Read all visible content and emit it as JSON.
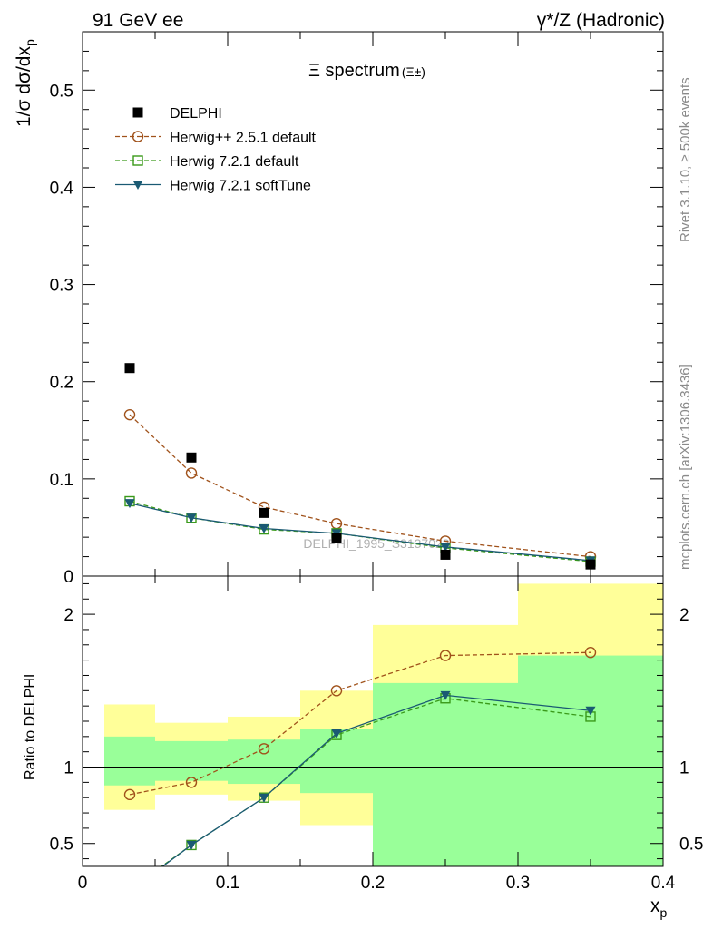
{
  "header": {
    "left": "91 GeV ee",
    "right": "γ*/Z (Hadronic)"
  },
  "side_labels": {
    "rivet": "Rivet 3.1.10, ≥ 500k events",
    "mcplots": "mcplots.cern.ch [arXiv:1306.3436]"
  },
  "watermark": "DELPHI_1995_S3137023",
  "colors": {
    "data": "#000000",
    "herwigpp": "#a0521b",
    "herwig721": "#3a9a1a",
    "softtune": "#1a5a73",
    "band_inner": "#99ff99",
    "band_outer": "#ffff99"
  },
  "chart_data": [
    {
      "type": "scatter",
      "title": "Ξ spectrum",
      "title_suffix": "(Ξ±)",
      "ylabel": "1/σ dσ/dx",
      "ylabel_sub": "p",
      "xlim": [
        0,
        0.4
      ],
      "ylim": [
        0,
        0.56
      ],
      "yticks": [
        0,
        0.1,
        0.2,
        0.3,
        0.4,
        0.5
      ],
      "ytick_labels": [
        "0",
        "0.1",
        "0.2",
        "0.3",
        "0.4",
        "0.5"
      ],
      "legend_position": "top-left",
      "x": [
        0.0325,
        0.075,
        0.125,
        0.175,
        0.25,
        0.35
      ],
      "series": [
        {
          "name": "DELPHI",
          "key": "data",
          "marker": "square",
          "line": "none",
          "values": [
            0.214,
            0.122,
            0.065,
            0.039,
            0.022,
            0.012
          ]
        },
        {
          "name": "Herwig++ 2.5.1 default",
          "key": "herwigpp",
          "marker": "circle-open",
          "line": "dashed",
          "values": [
            0.166,
            0.106,
            0.071,
            0.054,
            0.036,
            0.02
          ]
        },
        {
          "name": "Herwig 7.2.1 default",
          "key": "herwig721",
          "marker": "square-open",
          "line": "dashed",
          "values": [
            0.077,
            0.06,
            0.048,
            0.044,
            0.029,
            0.015
          ]
        },
        {
          "name": "Herwig 7.2.1 softTune",
          "key": "softtune",
          "marker": "triangle-down",
          "line": "solid",
          "values": [
            0.075,
            0.06,
            0.049,
            0.044,
            0.03,
            0.016
          ]
        }
      ]
    },
    {
      "type": "line",
      "ylabel": "Ratio to DELPHI",
      "xlabel": "x",
      "xlabel_sub": "p",
      "xlim": [
        0,
        0.4
      ],
      "ylim": [
        0.35,
        2.25
      ],
      "yticks": [
        0.5,
        1,
        2
      ],
      "ytick_labels": [
        "0.5",
        "1",
        "2"
      ],
      "xticks": [
        0,
        0.1,
        0.2,
        0.3,
        0.4
      ],
      "xtick_labels": [
        "0",
        "0.1",
        "0.2",
        "0.3",
        "0.4"
      ],
      "reference_line": 1,
      "bands": [
        {
          "xlo": 0.015,
          "xhi": 0.05,
          "inner": [
            0.88,
            1.2
          ],
          "outer": [
            0.72,
            1.41
          ]
        },
        {
          "xlo": 0.05,
          "xhi": 0.1,
          "inner": [
            0.91,
            1.17
          ],
          "outer": [
            0.82,
            1.29
          ]
        },
        {
          "xlo": 0.1,
          "xhi": 0.15,
          "inner": [
            0.89,
            1.18
          ],
          "outer": [
            0.78,
            1.33
          ]
        },
        {
          "xlo": 0.15,
          "xhi": 0.2,
          "inner": [
            0.83,
            1.25
          ],
          "outer": [
            0.62,
            1.5
          ]
        },
        {
          "xlo": 0.2,
          "xhi": 0.3,
          "inner": [
            0.35,
            1.55
          ],
          "outer": [
            0.35,
            1.93
          ]
        },
        {
          "xlo": 0.3,
          "xhi": 0.4,
          "inner": [
            0.35,
            1.73
          ],
          "outer": [
            0.35,
            2.2
          ]
        }
      ],
      "x": [
        0.0325,
        0.075,
        0.125,
        0.175,
        0.25,
        0.35
      ],
      "series": [
        {
          "name": "Herwig++ 2.5.1 default",
          "key": "herwigpp",
          "marker": "circle-open",
          "line": "dashed",
          "values": [
            0.82,
            0.9,
            1.12,
            1.5,
            1.73,
            1.75
          ]
        },
        {
          "name": "Herwig 7.2.1 default",
          "key": "herwig721",
          "marker": "square-open",
          "line": "dashed",
          "values": [
            0.2,
            0.49,
            0.8,
            1.21,
            1.45,
            1.33
          ]
        },
        {
          "name": "Herwig 7.2.1 softTune",
          "key": "softtune",
          "marker": "triangle-down",
          "line": "solid",
          "values": [
            0.19,
            0.49,
            0.8,
            1.22,
            1.47,
            1.37
          ]
        }
      ]
    }
  ]
}
